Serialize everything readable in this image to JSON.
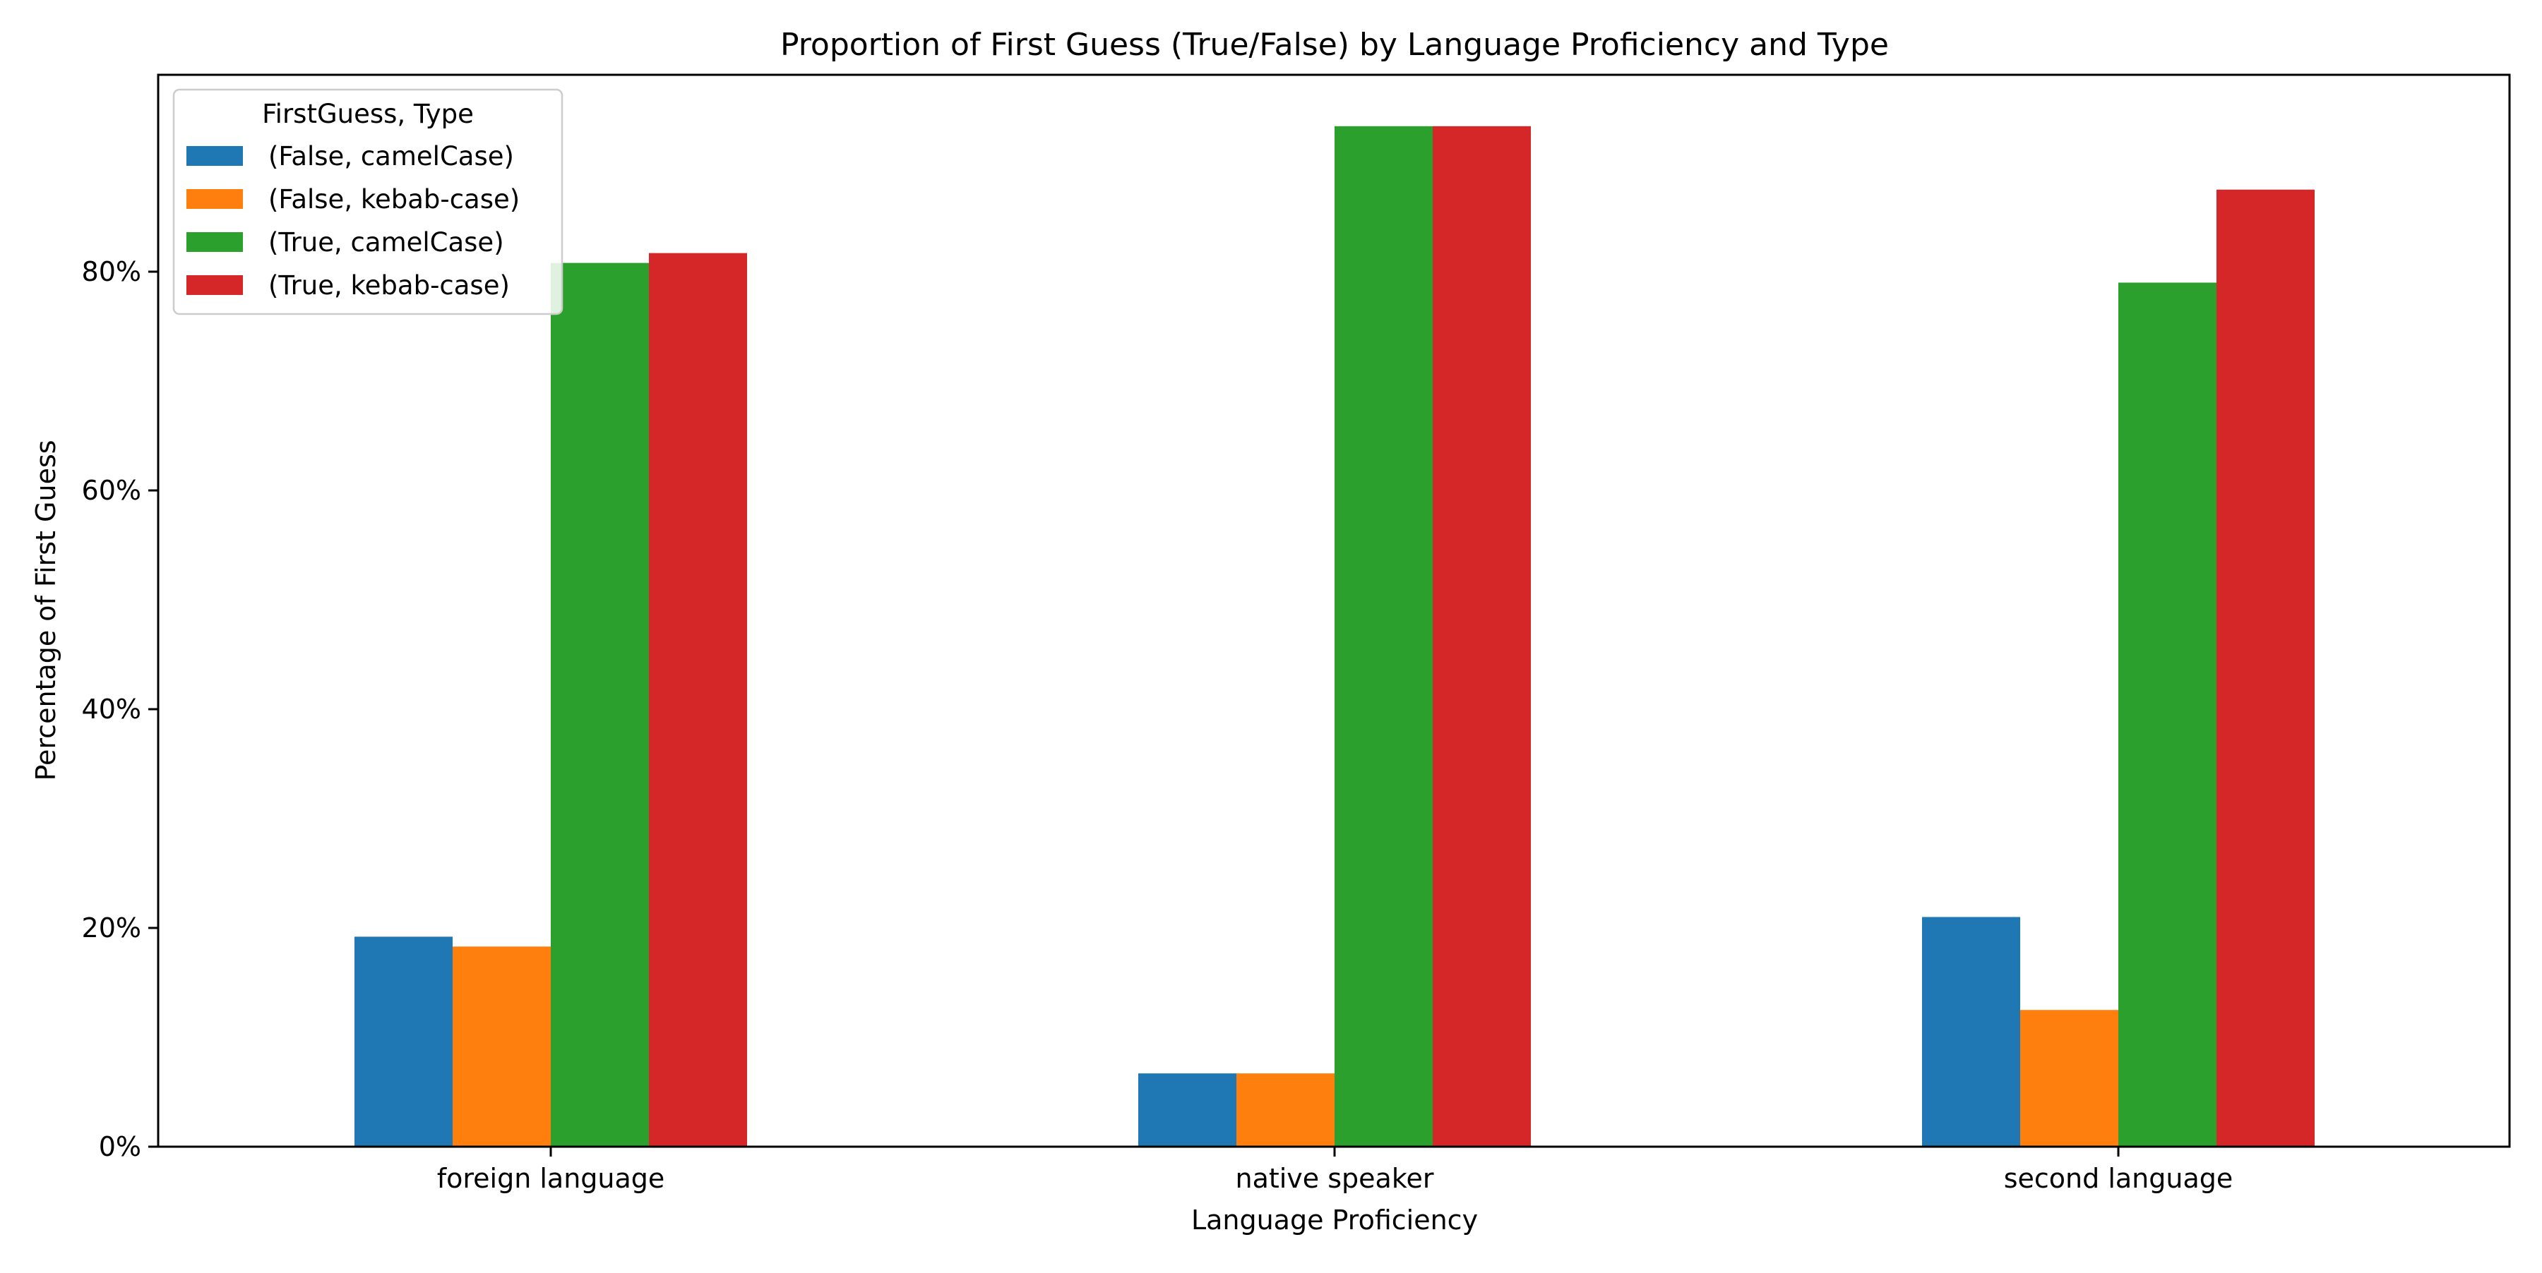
{
  "chart_data": {
    "type": "bar",
    "title": "Proportion of First Guess (True/False) by Language Proficiency and Type",
    "xlabel": "Language Proficiency",
    "ylabel": "Percentage of First Guess",
    "categories": [
      "foreign language",
      "native speaker",
      "second language"
    ],
    "series": [
      {
        "name": "(False, camelCase)",
        "color": "#1f77b4",
        "values": [
          19.2,
          6.7,
          21.0
        ]
      },
      {
        "name": "(False, kebab-case)",
        "color": "#ff7f0e",
        "values": [
          18.3,
          6.7,
          12.5
        ]
      },
      {
        "name": "(True, camelCase)",
        "color": "#2ca02c",
        "values": [
          80.8,
          93.3,
          79.0
        ]
      },
      {
        "name": "(True, kebab-case)",
        "color": "#d62728",
        "values": [
          81.7,
          93.3,
          87.5
        ]
      }
    ],
    "yticks": [
      0,
      20,
      40,
      60,
      80
    ],
    "ytick_labels": [
      "0%",
      "20%",
      "40%",
      "60%",
      "80%"
    ],
    "ylim": [
      0,
      98
    ],
    "grid": false,
    "legend": {
      "title": "FirstGuess, Type",
      "placement": "top-left"
    }
  }
}
